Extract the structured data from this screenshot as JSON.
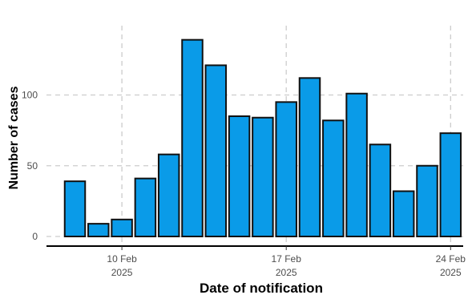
{
  "chart_data": {
    "type": "bar",
    "xlabel": "Date of notification",
    "ylabel": "Number of cases",
    "categories": [
      "2025-02-08",
      "2025-02-09",
      "2025-02-10",
      "2025-02-11",
      "2025-02-12",
      "2025-02-13",
      "2025-02-14",
      "2025-02-15",
      "2025-02-16",
      "2025-02-17",
      "2025-02-18",
      "2025-02-19",
      "2025-02-20",
      "2025-02-21",
      "2025-02-22",
      "2025-02-23",
      "2025-02-24"
    ],
    "values": [
      39,
      9,
      12,
      41,
      58,
      139,
      121,
      85,
      84,
      95,
      112,
      82,
      101,
      65,
      32,
      50,
      73
    ],
    "ylim": [
      0,
      145
    ],
    "y_ticks": [
      0,
      50,
      100
    ],
    "x_ticks": [
      {
        "date": "2025-02-10",
        "label_line1": "10 Feb",
        "label_line2": "2025"
      },
      {
        "date": "2025-02-17",
        "label_line1": "17 Feb",
        "label_line2": "2025"
      },
      {
        "date": "2025-02-24",
        "label_line1": "24 Feb",
        "label_line2": "2025"
      }
    ],
    "grid": true,
    "colors": {
      "bar_fill": "#0a9be8",
      "bar_stroke": "#111111",
      "grid": "#cccccc",
      "axis": "#000000"
    }
  }
}
